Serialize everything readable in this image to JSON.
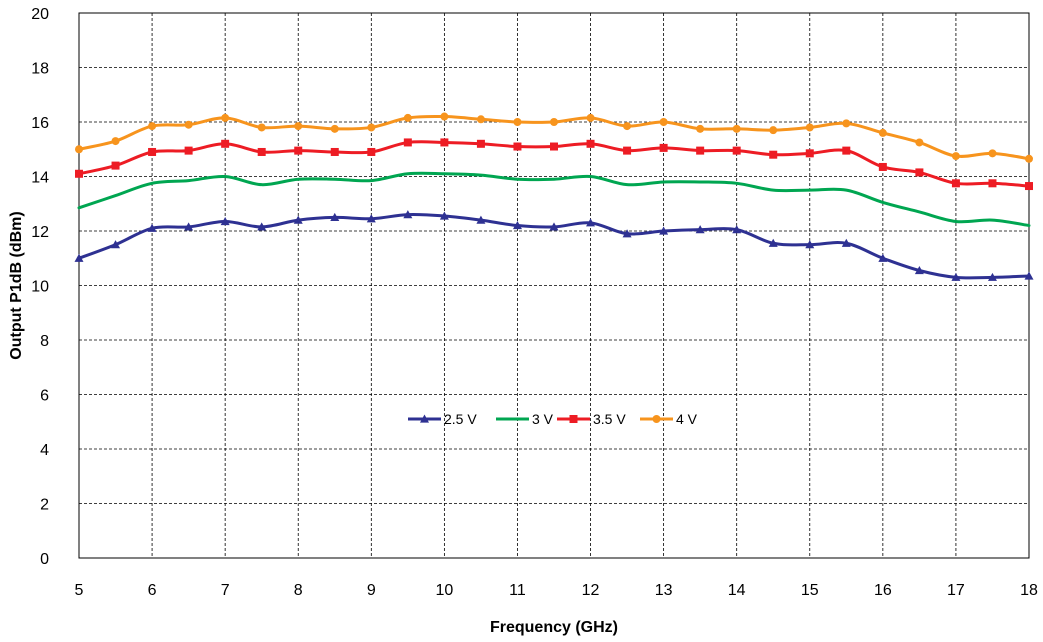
{
  "chart_data": {
    "type": "line",
    "title": "",
    "xlabel": "Frequency (GHz)",
    "ylabel": "Output P1dB (dBm)",
    "xlim": [
      5,
      18
    ],
    "ylim": [
      0,
      20
    ],
    "xticks": [
      5,
      6,
      7,
      8,
      9,
      10,
      11,
      12,
      13,
      14,
      15,
      16,
      17,
      18
    ],
    "yticks": [
      0,
      2,
      4,
      6,
      8,
      10,
      12,
      14,
      16,
      18,
      20
    ],
    "grid": true,
    "legend_position": "center",
    "x": [
      5,
      5.5,
      6,
      6.5,
      7,
      7.5,
      8,
      8.5,
      9,
      9.5,
      10,
      10.5,
      11,
      11.5,
      12,
      12.5,
      13,
      13.5,
      14,
      14.5,
      15,
      15.5,
      16,
      16.5,
      17,
      17.5,
      18
    ],
    "series": [
      {
        "name": "2.5 V",
        "color": "#2e3192",
        "marker": "triangle",
        "values": [
          11.0,
          11.5,
          12.1,
          12.15,
          12.35,
          12.15,
          12.4,
          12.5,
          12.45,
          12.6,
          12.55,
          12.4,
          12.2,
          12.15,
          12.3,
          11.9,
          12.0,
          12.05,
          12.05,
          11.55,
          11.5,
          11.55,
          11.0,
          10.55,
          10.3,
          10.3,
          10.35
        ]
      },
      {
        "name": "3 V",
        "color": "#00a651",
        "marker": "none",
        "values": [
          12.85,
          13.3,
          13.75,
          13.85,
          14.0,
          13.7,
          13.9,
          13.9,
          13.85,
          14.1,
          14.1,
          14.05,
          13.9,
          13.9,
          14.0,
          13.7,
          13.8,
          13.8,
          13.75,
          13.5,
          13.5,
          13.5,
          13.05,
          12.7,
          12.35,
          12.4,
          12.2
        ]
      },
      {
        "name": "3.5 V",
        "color": "#ed1c24",
        "marker": "square",
        "values": [
          14.1,
          14.4,
          14.9,
          14.95,
          15.2,
          14.9,
          14.95,
          14.9,
          14.9,
          15.25,
          15.25,
          15.2,
          15.1,
          15.1,
          15.2,
          14.95,
          15.05,
          14.95,
          14.95,
          14.8,
          14.85,
          14.95,
          14.35,
          14.15,
          13.75,
          13.75,
          13.65
        ]
      },
      {
        "name": "4 V",
        "color": "#f7941d",
        "marker": "circle",
        "values": [
          15.0,
          15.3,
          15.85,
          15.9,
          16.15,
          15.8,
          15.85,
          15.75,
          15.8,
          16.15,
          16.2,
          16.1,
          16.0,
          16.0,
          16.15,
          15.85,
          16.0,
          15.75,
          15.75,
          15.7,
          15.8,
          15.95,
          15.6,
          15.25,
          14.75,
          14.85,
          14.65
        ]
      }
    ]
  }
}
